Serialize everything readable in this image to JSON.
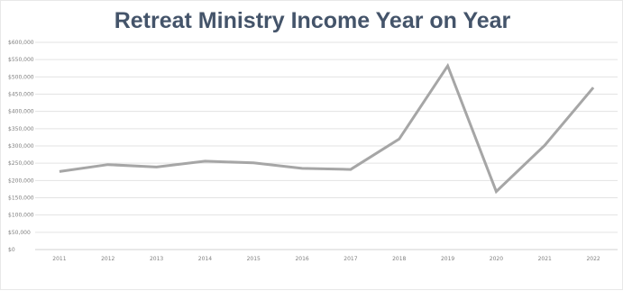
{
  "chart_data": {
    "type": "line",
    "title": "Retreat Ministry Income Year on Year",
    "xlabel": "",
    "ylabel": "",
    "categories": [
      "2011",
      "2012",
      "2013",
      "2014",
      "2015",
      "2016",
      "2017",
      "2018",
      "2019",
      "2020",
      "2021",
      "2022"
    ],
    "series": [
      {
        "values": [
          226000,
          246000,
          239000,
          256000,
          251000,
          235000,
          232000,
          320000,
          532000,
          168000,
          302000,
          469000
        ]
      }
    ],
    "yticks": [
      "$0",
      "$50,000",
      "$100,000",
      "$150,000",
      "$200,000",
      "$250,000",
      "$300,000",
      "$350,000",
      "$400,000",
      "$450,000",
      "$500,000",
      "$550,000",
      "$600,000"
    ],
    "ylim": [
      0,
      600000
    ],
    "grid": true,
    "legend": "none",
    "line_color": "#a6a6a6"
  }
}
